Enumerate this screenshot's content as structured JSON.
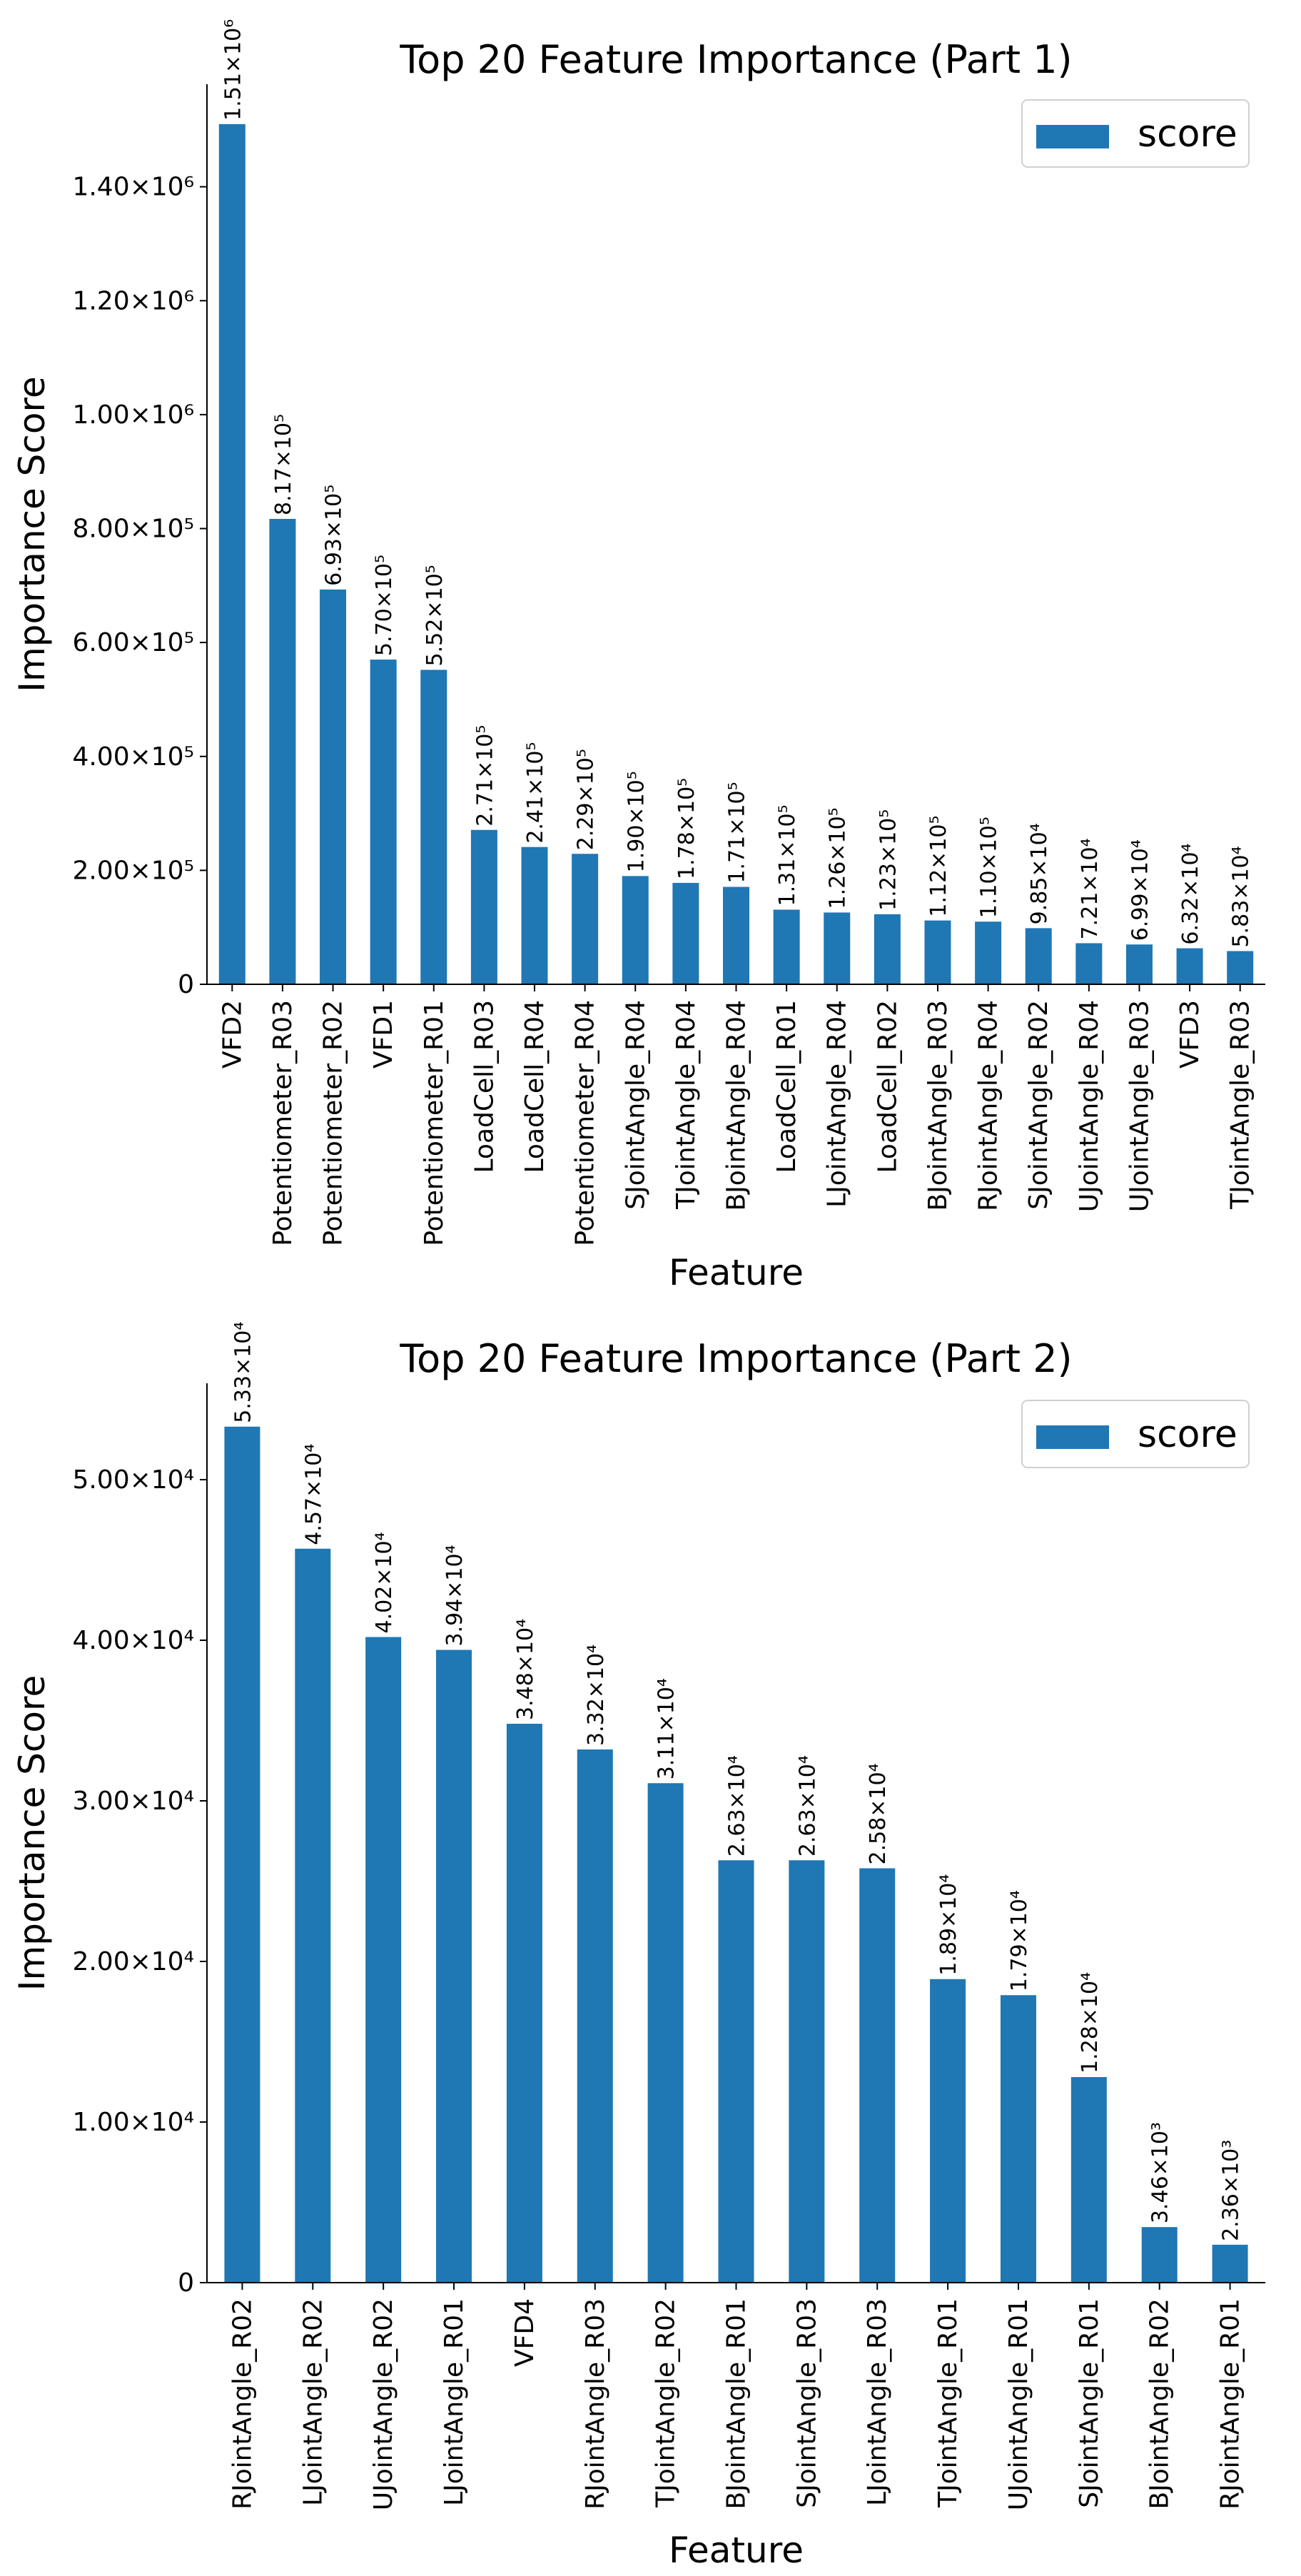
{
  "bar_color": "#1f77b4",
  "chart_data": [
    {
      "type": "bar",
      "title": "Top 20 Feature Importance (Part 1)",
      "xlabel": "Feature",
      "ylabel": "Importance Score",
      "legend": {
        "labels": [
          "score"
        ],
        "position": "top-right"
      },
      "grid": false,
      "ylim": [
        0,
        1580000
      ],
      "y_ticks": [
        {
          "value": 0,
          "label": "0"
        },
        {
          "value": 200000,
          "label": "2.00×10⁵"
        },
        {
          "value": 400000,
          "label": "4.00×10⁵"
        },
        {
          "value": 600000,
          "label": "6.00×10⁵"
        },
        {
          "value": 800000,
          "label": "8.00×10⁵"
        },
        {
          "value": 1000000,
          "label": "1.00×10⁶"
        },
        {
          "value": 1200000,
          "label": "1.20×10⁶"
        },
        {
          "value": 1400000,
          "label": "1.40×10⁶"
        }
      ],
      "categories": [
        "VFD2",
        "Potentiometer_R03",
        "Potentiometer_R02",
        "VFD1",
        "Potentiometer_R01",
        "LoadCell_R03",
        "LoadCell_R04",
        "Potentiometer_R04",
        "SJointAngle_R04",
        "TJointAngle_R04",
        "BJointAngle_R04",
        "LoadCell_R01",
        "LJointAngle_R04",
        "LoadCell_R02",
        "BJointAngle_R03",
        "RJointAngle_R04",
        "SJointAngle_R02",
        "UJointAngle_R04",
        "UJointAngle_R03",
        "VFD3",
        "TJointAngle_R03"
      ],
      "values": [
        1510000,
        817000,
        693000,
        570000,
        552000,
        271000,
        241000,
        229000,
        190000,
        178000,
        171000,
        131000,
        126000,
        123000,
        112000,
        110000,
        98500,
        72100,
        69900,
        63200,
        58300
      ],
      "value_labels": [
        "1.51×10⁶",
        "8.17×10⁵",
        "6.93×10⁵",
        "5.70×10⁵",
        "5.52×10⁵",
        "2.71×10⁵",
        "2.41×10⁵",
        "2.29×10⁵",
        "1.90×10⁵",
        "1.78×10⁵",
        "1.71×10⁵",
        "1.31×10⁵",
        "1.26×10⁵",
        "1.23×10⁵",
        "1.12×10⁵",
        "1.10×10⁵",
        "9.85×10⁴",
        "7.21×10⁴",
        "6.99×10⁴",
        "6.32×10⁴",
        "5.83×10⁴"
      ]
    },
    {
      "type": "bar",
      "title": "Top 20 Feature Importance (Part 2)",
      "xlabel": "Feature",
      "ylabel": "Importance Score",
      "legend": {
        "labels": [
          "score"
        ],
        "position": "top-right"
      },
      "grid": false,
      "ylim": [
        0,
        56000
      ],
      "y_ticks": [
        {
          "value": 0,
          "label": "0"
        },
        {
          "value": 10000,
          "label": "1.00×10⁴"
        },
        {
          "value": 20000,
          "label": "2.00×10⁴"
        },
        {
          "value": 30000,
          "label": "3.00×10⁴"
        },
        {
          "value": 40000,
          "label": "4.00×10⁴"
        },
        {
          "value": 50000,
          "label": "5.00×10⁴"
        }
      ],
      "categories": [
        "RJointAngle_R02",
        "LJointAngle_R02",
        "UJointAngle_R02",
        "LJointAngle_R01",
        "VFD4",
        "RJointAngle_R03",
        "TJointAngle_R02",
        "BJointAngle_R01",
        "SJointAngle_R03",
        "LJointAngle_R03",
        "TJointAngle_R01",
        "UJointAngle_R01",
        "SJointAngle_R01",
        "BJointAngle_R02",
        "RJointAngle_R01"
      ],
      "values": [
        53300,
        45700,
        40200,
        39400,
        34800,
        33200,
        31100,
        26300,
        26300,
        25800,
        18900,
        17900,
        12800,
        3460,
        2360
      ],
      "value_labels": [
        "5.33×10⁴",
        "4.57×10⁴",
        "4.02×10⁴",
        "3.94×10⁴",
        "3.48×10⁴",
        "3.32×10⁴",
        "3.11×10⁴",
        "2.63×10⁴",
        "2.63×10⁴",
        "2.58×10⁴",
        "1.89×10⁴",
        "1.79×10⁴",
        "1.28×10⁴",
        "3.46×10³",
        "2.36×10³"
      ]
    }
  ]
}
